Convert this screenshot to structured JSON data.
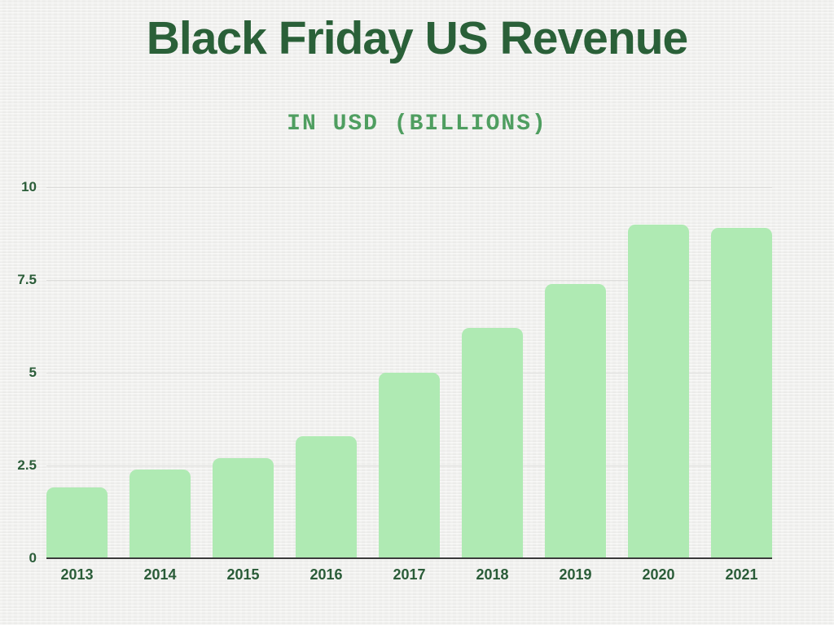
{
  "chart_data": {
    "type": "bar",
    "title": "Black Friday US Revenue",
    "subtitle": "IN USD (BILLIONS)",
    "categories": [
      "2013",
      "2014",
      "2015",
      "2016",
      "2017",
      "2018",
      "2019",
      "2020",
      "2021"
    ],
    "values": [
      1.9,
      2.4,
      2.7,
      3.3,
      5.0,
      6.2,
      7.4,
      9.0,
      8.9
    ],
    "xlabel": "",
    "ylabel": "",
    "ylim": [
      0,
      10
    ],
    "y_ticks": [
      0,
      2.5,
      5,
      7.5,
      10
    ],
    "y_tick_labels": [
      "0",
      "2.5",
      "5",
      "7.5",
      "10"
    ],
    "grid": true,
    "legend": false,
    "colors": {
      "title": "#2a6038",
      "subtitle": "#4f9e60",
      "bar": "#afeab3",
      "gridline": "#dbdbd9",
      "axis_line": "#3b3b3b",
      "tick_labels": "#2a5c38",
      "background": "#f2f2f0"
    }
  }
}
